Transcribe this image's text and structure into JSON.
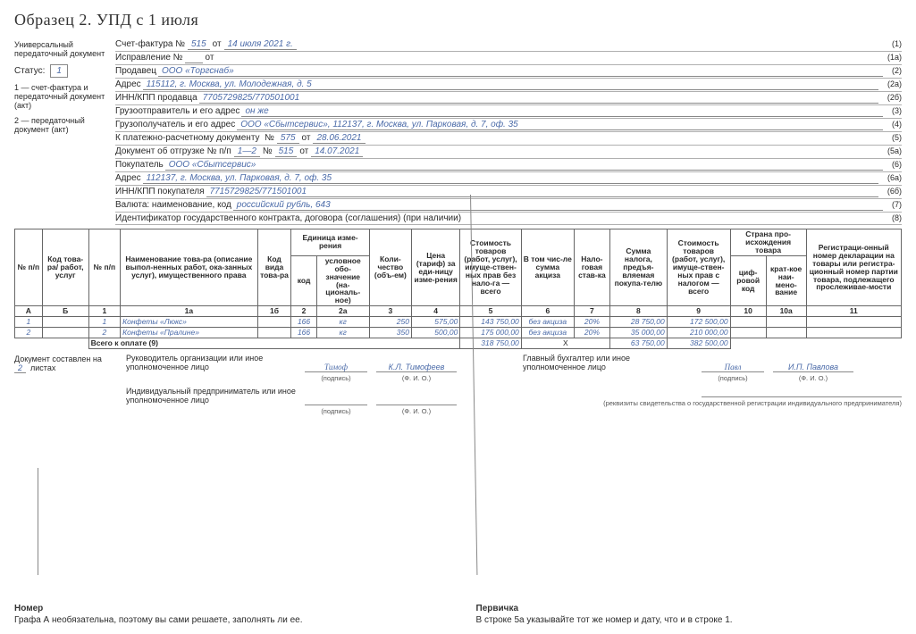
{
  "title": "Образец 2. УПД с 1 июля",
  "left": {
    "doc_type": "Универсальный передаточный документ",
    "status_label": "Статус:",
    "status_value": "1",
    "status_note1": "1 — счет-фактура и передаточный документ (акт)",
    "status_note2": "2 — передаточный документ (акт)"
  },
  "hdr": {
    "l1_pre": "Счет-фактура №",
    "l1_num": "515",
    "l1_mid": "от",
    "l1_date": "14 июля 2021 г.",
    "l1_p": "(1)",
    "l2_pre": "Исправление №",
    "l2_mid": "от",
    "l2_p": "(1а)",
    "l3_pre": "Продавец",
    "l3_val": "ООО «Торгснаб»",
    "l3_p": "(2)",
    "l4_pre": "Адрес",
    "l4_val": "115112, г. Москва, ул. Молодежная, д. 5",
    "l4_p": "(2а)",
    "l5_pre": "ИНН/КПП продавца",
    "l5_val": "7705729825/770501001",
    "l5_p": "(2б)",
    "l6_pre": "Грузоотправитель и его адрес",
    "l6_val": "он же",
    "l6_p": "(3)",
    "l7_pre": "Грузополучатель и его адрес",
    "l7_val": "ООО «Сбытсервис», 112137, г. Москва, ул. Парковая, д. 7, оф. 35",
    "l7_p": "(4)",
    "l8_pre": "К платежно-расчетному документу",
    "l8_n": "№",
    "l8_num": "575",
    "l8_mid": "от",
    "l8_date": "28.06.2021",
    "l8_p": "(5)",
    "l9_pre": "Документ об отгрузке № п/п",
    "l9_pp": "1—2",
    "l9_n": "№",
    "l9_num": "515",
    "l9_mid": "от",
    "l9_date": "14.07.2021",
    "l9_p": "(5а)",
    "l10_pre": "Покупатель",
    "l10_val": "ООО «Сбытсервис»",
    "l10_p": "(6)",
    "l11_pre": "Адрес",
    "l11_val": "112137, г. Москва, ул. Парковая, д. 7, оф. 35",
    "l11_p": "(6а)",
    "l12_pre": "ИНН/КПП покупателя",
    "l12_val": "7715729825/771501001",
    "l12_p": "(6б)",
    "l13_pre": "Валюта: наименование, код",
    "l13_val": "российский рубль, 643",
    "l13_p": "(7)",
    "l14_pre": "Идентификатор государственного контракта, договора (соглашения) (при наличии)",
    "l14_p": "(8)"
  },
  "th": {
    "c_a": "№ п/п",
    "c_b": "Код това-ра/ работ, услуг",
    "c1": "№ п/п",
    "c1a": "Наименование това-ра (описание выпол-ненных работ, ока-занных услуг), имущественного права",
    "c1b": "Код вида това-ра",
    "c2g": "Единица изме-рения",
    "c2": "код",
    "c2a": "условное обо-значение (на-циональ-ное)",
    "c3": "Коли-чество (объ-ем)",
    "c4": "Цена (тариф) за еди-ницу изме-рения",
    "c5": "Стоимость товаров (работ, услуг), имуще-ствен-ных прав без нало-га — всего",
    "c6": "В том чис-ле сумма акциза",
    "c7": "Нало-говая став-ка",
    "c8": "Сумма налога, предъя-вляемая покупа-телю",
    "c9": "Стоимость товаров (работ, услуг), имуще-ствен-ных прав с налогом — всего",
    "c10g": "Страна про-исхождения товара",
    "c10": "циф-ровой код",
    "c10a": "крат-кое наи-мено-вание",
    "c11": "Регистраци-онный номер декларации на товары или регистра-ционный номер партии товара, подлежащего прослеживае-мости",
    "ra": "А",
    "rb": "Б",
    "r1": "1",
    "r1a": "1а",
    "r1b": "1б",
    "r2": "2",
    "r2a": "2а",
    "r3": "3",
    "r4": "4",
    "r5": "5",
    "r6": "6",
    "r7": "7",
    "r8": "8",
    "r9": "9",
    "r10": "10",
    "r10a": "10а",
    "r11": "11"
  },
  "rows": [
    {
      "a": "1",
      "b": "",
      "n": "1",
      "name": "Конфеты «Люкс»",
      "vid": "",
      "kod": "166",
      "ed": "кг",
      "qty": "250",
      "price": "575,00",
      "s5": "143 750,00",
      "akciz": "без акциза",
      "rate": "20%",
      "tax": "28 750,00",
      "s9": "172 500,00",
      "c10": "",
      "c10a": "",
      "c11": ""
    },
    {
      "a": "2",
      "b": "",
      "n": "2",
      "name": "Конфеты «Пралине»",
      "vid": "",
      "kod": "166",
      "ed": "кг",
      "qty": "350",
      "price": "500,00",
      "s5": "175 000,00",
      "akciz": "без акциза",
      "rate": "20%",
      "tax": "35 000,00",
      "s9": "210 000,00",
      "c10": "",
      "c10a": "",
      "c11": ""
    }
  ],
  "total": {
    "label": "Всего к оплате (9)",
    "s5": "318 750,00",
    "x": "Х",
    "tax": "63 750,00",
    "s9": "382 500,00"
  },
  "sign": {
    "doc_on": "Документ составлен на",
    "pages": "2",
    "pages_suf": "листах",
    "head": "Руководитель организации или иное уполномоченное лицо",
    "head_sig": "Тимоф",
    "head_name": "К.Л. Тимофеев",
    "acc": "Главный бухгалтер или иное уполномоченное лицо",
    "acc_sig": "Павл",
    "acc_name": "И.П. Павлова",
    "ip": "Индивидуальный предприниматель или иное уполномоченное лицо",
    "sub_sig": "(подпись)",
    "sub_fio": "(Ф. И. О.)",
    "ip_sub": "(реквизиты свидетельства о государственной регистрации индивидуального предпринимателя)"
  },
  "notes": {
    "n1_title": "Номер",
    "n1_text": "Графа А необязательна, поэтому вы сами решаете, заполнять ли ее.",
    "n2_title": "Первичка",
    "n2_text": "В строке 5а указывайте тот же номер и дату, что и в строке 1."
  }
}
